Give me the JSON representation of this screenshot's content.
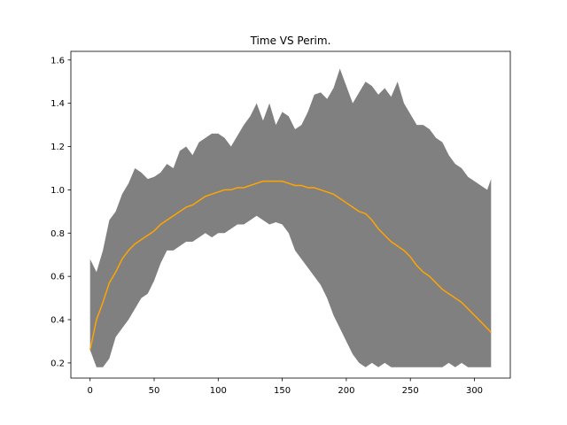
{
  "chart_data": {
    "type": "line",
    "title": "Time VS Perim.",
    "xlabel": "",
    "ylabel": "",
    "xlim": [
      -15,
      328
    ],
    "ylim": [
      0.13,
      1.64
    ],
    "xticks": [
      0,
      50,
      100,
      150,
      200,
      250,
      300
    ],
    "yticks": [
      0.2,
      0.4,
      0.6,
      0.8,
      1.0,
      1.2,
      1.4,
      1.6
    ],
    "grid": false,
    "legend": "none",
    "colors": {
      "mean": "#ffa500",
      "band": "#808080"
    },
    "x": [
      0,
      5,
      10,
      15,
      20,
      25,
      30,
      35,
      40,
      45,
      50,
      55,
      60,
      65,
      70,
      75,
      80,
      85,
      90,
      95,
      100,
      105,
      110,
      115,
      120,
      125,
      130,
      135,
      140,
      145,
      150,
      155,
      160,
      165,
      170,
      175,
      180,
      185,
      190,
      195,
      200,
      205,
      210,
      215,
      220,
      225,
      230,
      235,
      240,
      245,
      250,
      255,
      260,
      265,
      270,
      275,
      280,
      285,
      290,
      295,
      300,
      305,
      310,
      313
    ],
    "series": [
      {
        "role": "mean",
        "values": [
          0.26,
          0.4,
          0.48,
          0.57,
          0.62,
          0.68,
          0.72,
          0.75,
          0.77,
          0.79,
          0.81,
          0.84,
          0.86,
          0.88,
          0.9,
          0.92,
          0.93,
          0.95,
          0.97,
          0.98,
          0.99,
          1.0,
          1.0,
          1.01,
          1.01,
          1.02,
          1.03,
          1.04,
          1.04,
          1.04,
          1.04,
          1.03,
          1.02,
          1.02,
          1.01,
          1.01,
          1.0,
          0.99,
          0.98,
          0.96,
          0.94,
          0.92,
          0.9,
          0.89,
          0.86,
          0.82,
          0.79,
          0.76,
          0.74,
          0.72,
          0.69,
          0.65,
          0.62,
          0.6,
          0.57,
          0.54,
          0.52,
          0.5,
          0.48,
          0.45,
          0.42,
          0.39,
          0.36,
          0.34
        ]
      },
      {
        "role": "upper",
        "values": [
          0.68,
          0.62,
          0.72,
          0.86,
          0.9,
          0.98,
          1.03,
          1.1,
          1.08,
          1.05,
          1.06,
          1.08,
          1.12,
          1.1,
          1.18,
          1.2,
          1.16,
          1.22,
          1.24,
          1.26,
          1.26,
          1.24,
          1.2,
          1.25,
          1.3,
          1.34,
          1.4,
          1.32,
          1.4,
          1.3,
          1.36,
          1.34,
          1.28,
          1.3,
          1.36,
          1.44,
          1.45,
          1.42,
          1.47,
          1.56,
          1.48,
          1.4,
          1.45,
          1.5,
          1.48,
          1.44,
          1.47,
          1.43,
          1.5,
          1.4,
          1.35,
          1.3,
          1.3,
          1.28,
          1.24,
          1.22,
          1.16,
          1.12,
          1.1,
          1.06,
          1.04,
          1.02,
          1.0,
          1.05
        ]
      },
      {
        "role": "lower",
        "values": [
          0.26,
          0.18,
          0.18,
          0.22,
          0.32,
          0.36,
          0.4,
          0.45,
          0.5,
          0.52,
          0.58,
          0.66,
          0.72,
          0.72,
          0.74,
          0.76,
          0.76,
          0.78,
          0.8,
          0.78,
          0.8,
          0.8,
          0.82,
          0.84,
          0.84,
          0.86,
          0.88,
          0.86,
          0.84,
          0.85,
          0.84,
          0.8,
          0.72,
          0.68,
          0.64,
          0.6,
          0.56,
          0.5,
          0.42,
          0.36,
          0.3,
          0.24,
          0.2,
          0.18,
          0.2,
          0.18,
          0.2,
          0.18,
          0.18,
          0.18,
          0.18,
          0.18,
          0.18,
          0.18,
          0.18,
          0.18,
          0.2,
          0.18,
          0.2,
          0.18,
          0.18,
          0.18,
          0.18,
          0.18
        ]
      }
    ]
  }
}
